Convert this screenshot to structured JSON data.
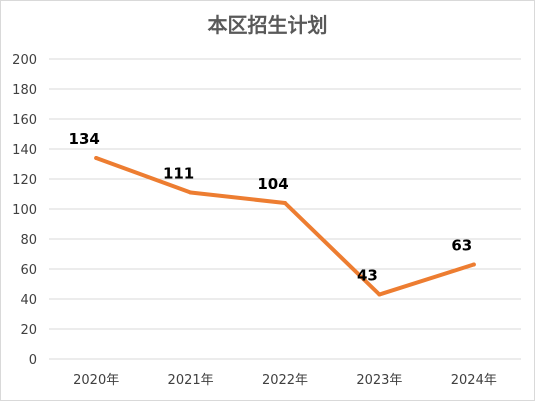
{
  "chart_data": {
    "type": "line",
    "title": "本区招生计划",
    "categories": [
      "2020年",
      "2021年",
      "2022年",
      "2023年",
      "2024年"
    ],
    "values": [
      134,
      111,
      104,
      43,
      63
    ],
    "data_labels": [
      "134",
      "111",
      "104",
      "43",
      "63"
    ],
    "xlabel": "",
    "ylabel": "",
    "ylim": [
      0,
      200
    ],
    "yticks": [
      "0",
      "20",
      "40",
      "60",
      "80",
      "100",
      "120",
      "140",
      "160",
      "180",
      "200"
    ],
    "grid": true,
    "legend": "none",
    "line_color": "#ED7D31",
    "grid_color": "#D9D9D9"
  }
}
